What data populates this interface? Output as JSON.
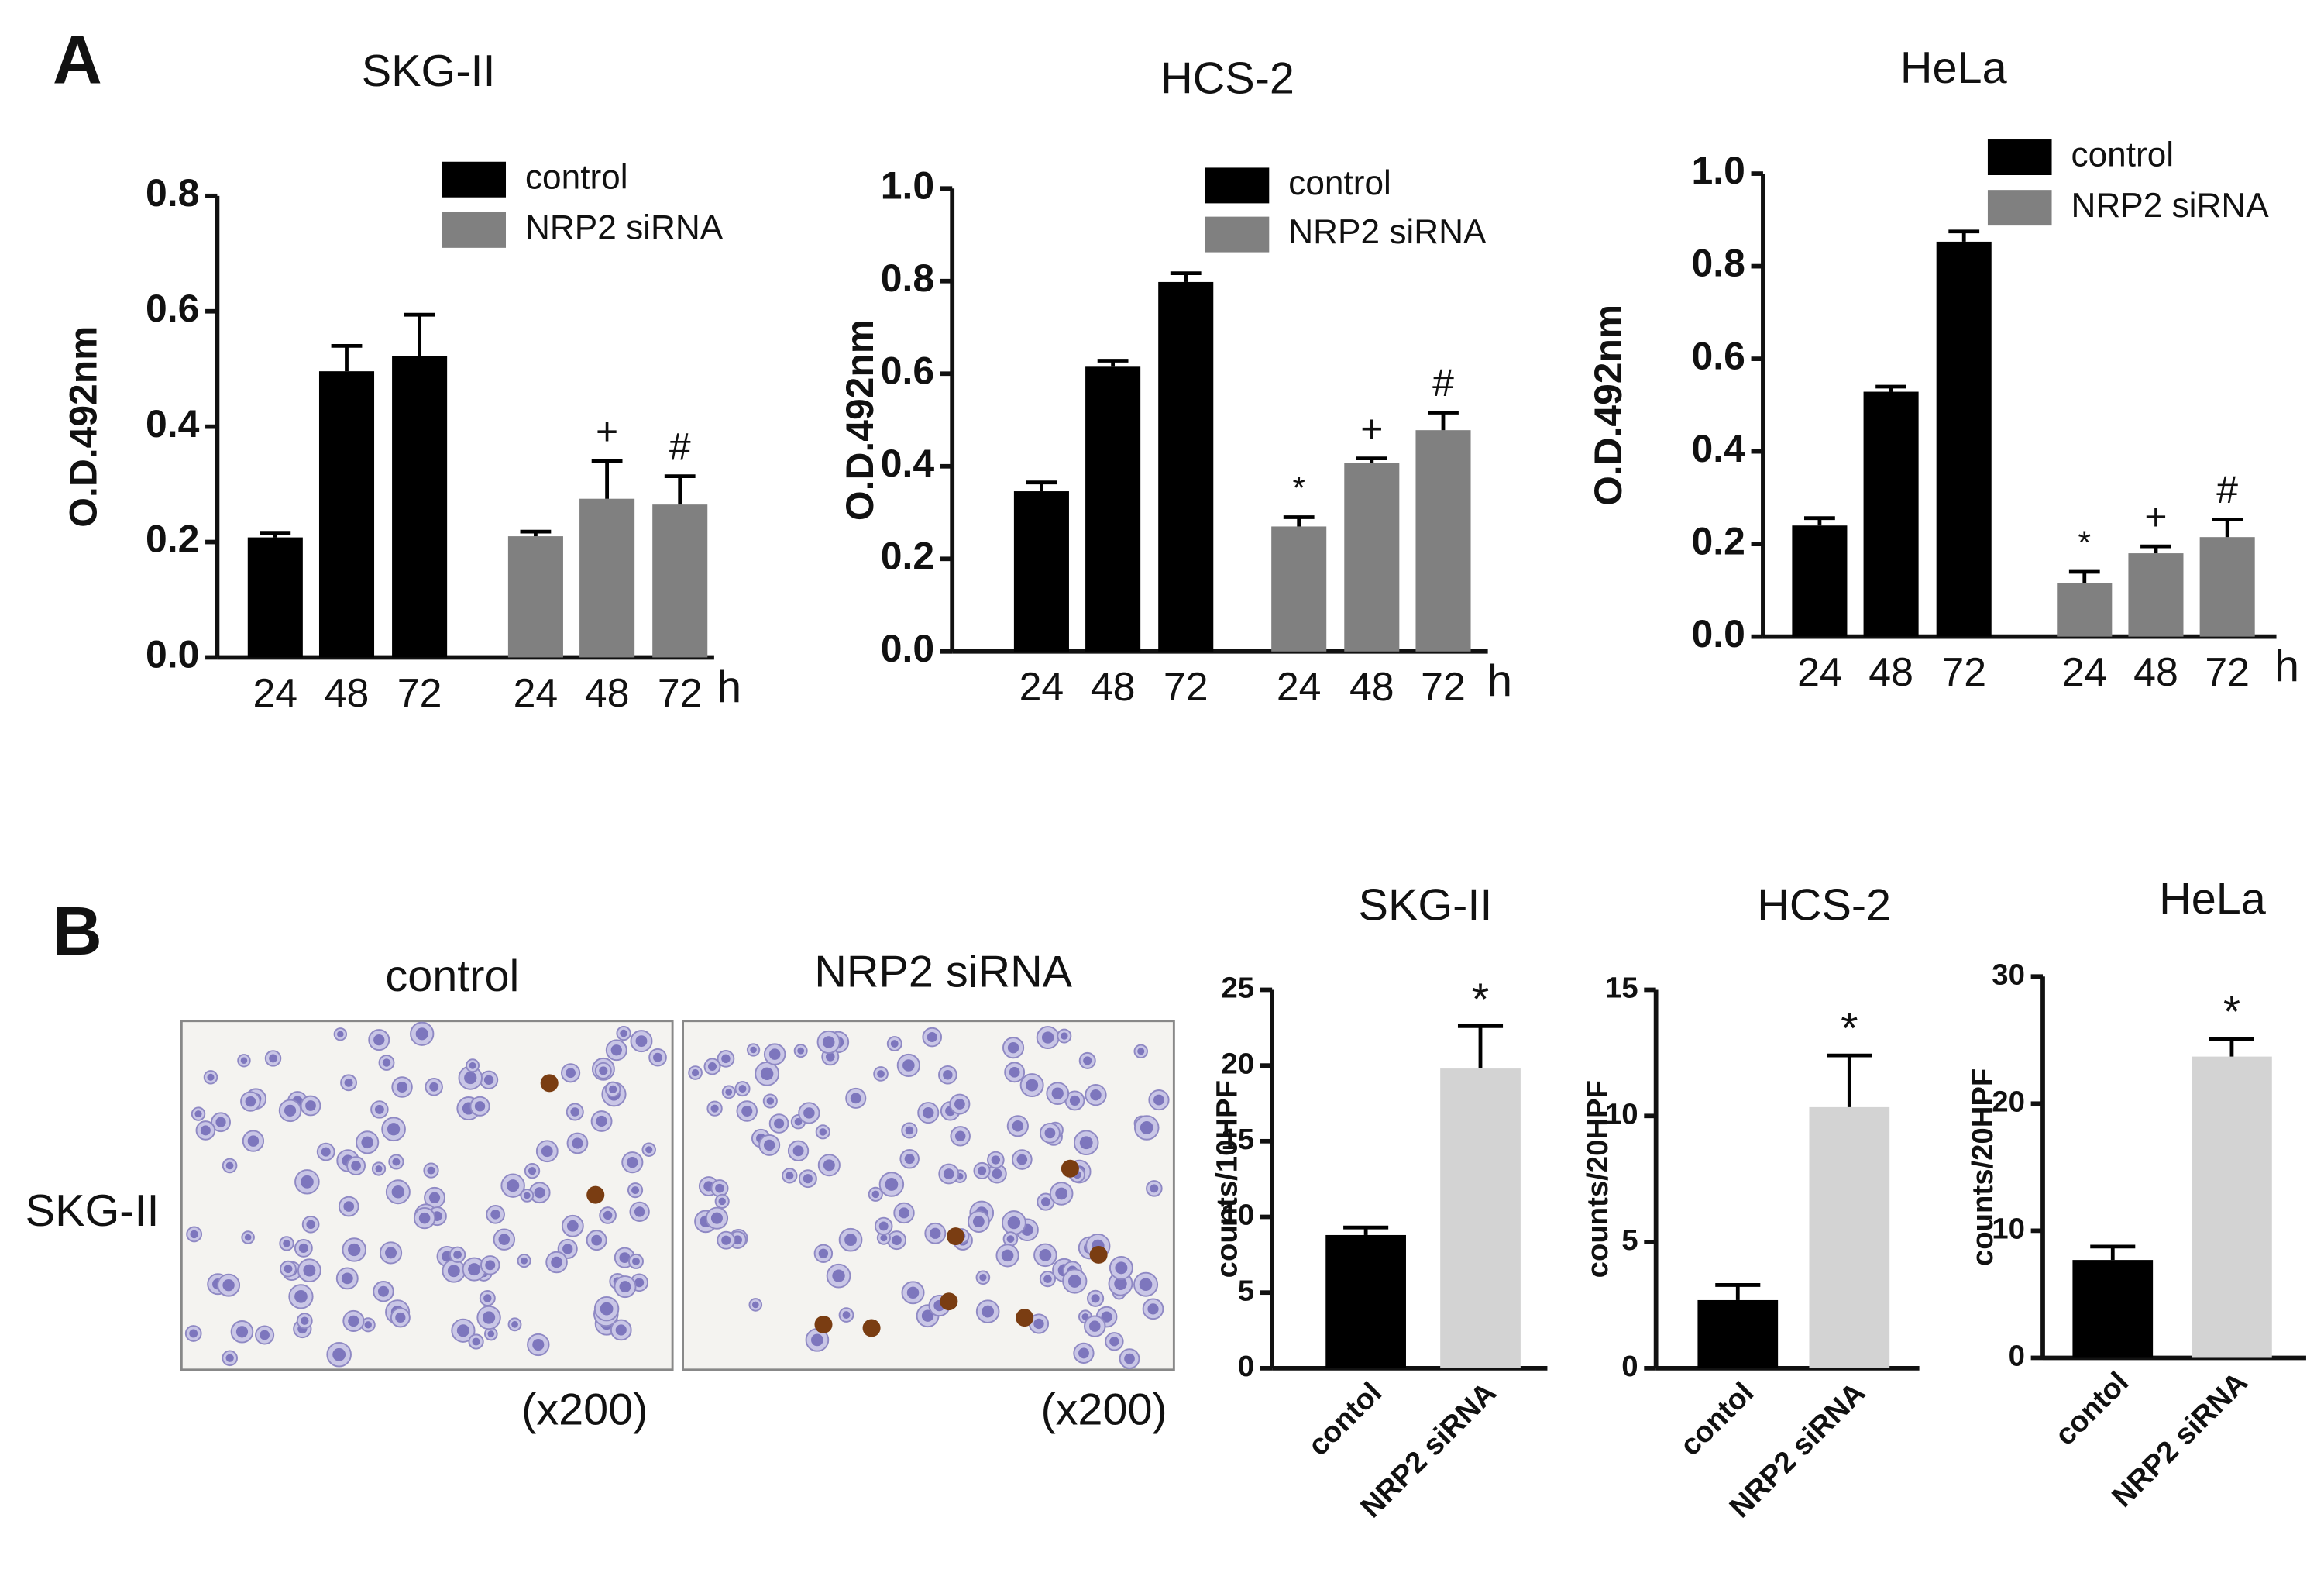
{
  "panel_labels": [
    "A",
    "B"
  ],
  "micrographs": {
    "row_label": "SKG-II",
    "images": [
      {
        "label": "control",
        "magnification": "(x200)"
      },
      {
        "label": "NRP2 siRNA",
        "magnification": "(x200)"
      }
    ]
  },
  "chart_data": [
    {
      "type": "bar",
      "title": "SKG-II",
      "ylabel": "O.D.492nm",
      "x_unit": "h",
      "categories": [
        "24",
        "48",
        "72"
      ],
      "series": [
        {
          "name": "control",
          "color": "#000000",
          "values": [
            0.208,
            0.496,
            0.522
          ],
          "errors": [
            0.008,
            0.044,
            0.072
          ],
          "annotations": [
            null,
            null,
            null
          ]
        },
        {
          "name": "NRP2 siRNA",
          "color": "#808080",
          "values": [
            0.21,
            0.275,
            0.265
          ],
          "errors": [
            0.008,
            0.065,
            0.049
          ],
          "annotations": [
            null,
            "+",
            "#"
          ]
        }
      ],
      "ylim": [
        0,
        0.8
      ],
      "yticks": [
        {
          "value": 0,
          "label": "0.0"
        },
        0.2,
        0.4,
        0.6,
        0.8
      ],
      "legend": "top right"
    },
    {
      "type": "bar",
      "title": "HCS-2",
      "ylabel": "O.D.492nm",
      "x_unit": "h",
      "categories": [
        "24",
        "48",
        "72"
      ],
      "series": [
        {
          "name": "control",
          "color": "#000000",
          "values": [
            0.346,
            0.615,
            0.798
          ],
          "errors": [
            0.019,
            0.013,
            0.019
          ],
          "annotations": [
            null,
            null,
            null
          ]
        },
        {
          "name": "NRP2 siRNA",
          "color": "#808080",
          "values": [
            0.27,
            0.407,
            0.478
          ],
          "errors": [
            0.02,
            0.01,
            0.038
          ],
          "annotations": [
            "*",
            "+",
            "#"
          ]
        }
      ],
      "ylim": [
        0,
        1.0
      ],
      "yticks": [
        {
          "value": 0,
          "label": "0.0"
        },
        0.2,
        0.4,
        0.6,
        0.8,
        {
          "value": 1.0,
          "label": "1.0"
        }
      ],
      "legend": "top right"
    },
    {
      "type": "bar",
      "title": "HeLa",
      "ylabel": "O.D.492nm",
      "x_unit": "h",
      "categories": [
        "24",
        "48",
        "72"
      ],
      "series": [
        {
          "name": "control",
          "color": "#000000",
          "values": [
            0.24,
            0.529,
            0.853
          ],
          "errors": [
            0.016,
            0.011,
            0.022
          ],
          "annotations": [
            null,
            null,
            null
          ]
        },
        {
          "name": "NRP2 siRNA",
          "color": "#808080",
          "values": [
            0.115,
            0.18,
            0.215
          ],
          "errors": [
            0.025,
            0.015,
            0.038
          ],
          "annotations": [
            "*",
            "+",
            "#"
          ]
        }
      ],
      "ylim": [
        0,
        1.0
      ],
      "yticks": [
        {
          "value": 0,
          "label": "0.0"
        },
        0.2,
        0.4,
        0.6,
        0.8,
        {
          "value": 1.0,
          "label": "1.0"
        }
      ],
      "legend": "top right"
    },
    {
      "type": "bar",
      "title": "SKG-II",
      "ylabel": "counts/10HPF",
      "categories": [
        "contol",
        "NRP2 siRNA"
      ],
      "colors": [
        "#000000",
        "#d3d3d3"
      ],
      "values": [
        8.8,
        19.8
      ],
      "errors": [
        0.5,
        2.8
      ],
      "annotations": [
        null,
        "*"
      ],
      "ylim": [
        0,
        25
      ],
      "yticks": [
        0,
        5,
        10,
        15,
        20,
        25
      ]
    },
    {
      "type": "bar",
      "title": "HCS-2",
      "ylabel": "counts/20HPF",
      "categories": [
        "contol",
        "NRP2 siRNA"
      ],
      "colors": [
        "#000000",
        "#d3d3d3"
      ],
      "values": [
        2.7,
        10.35
      ],
      "errors": [
        0.6,
        2.05
      ],
      "annotations": [
        null,
        "*"
      ],
      "ylim": [
        0,
        15
      ],
      "yticks": [
        0,
        5,
        10,
        15
      ]
    },
    {
      "type": "bar",
      "title": "HeLa",
      "ylabel": "counts/20HPF",
      "categories": [
        "contol",
        "NRP2 siRNA"
      ],
      "colors": [
        "#000000",
        "#d3d3d3"
      ],
      "values": [
        7.7,
        23.7
      ],
      "errors": [
        1.05,
        1.4
      ],
      "annotations": [
        null,
        "*"
      ],
      "ylim": [
        0,
        30
      ],
      "yticks": [
        0,
        10,
        20,
        30
      ]
    }
  ]
}
